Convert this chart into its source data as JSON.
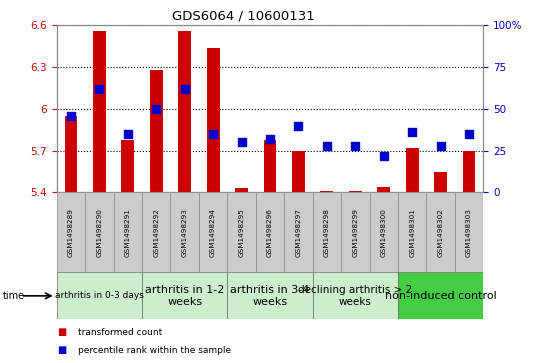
{
  "title": "GDS6064 / 10600131",
  "samples": [
    "GSM1498289",
    "GSM1498290",
    "GSM1498291",
    "GSM1498292",
    "GSM1498293",
    "GSM1498294",
    "GSM1498295",
    "GSM1498296",
    "GSM1498297",
    "GSM1498298",
    "GSM1498299",
    "GSM1498300",
    "GSM1498301",
    "GSM1498302",
    "GSM1498303"
  ],
  "bar_values": [
    5.95,
    6.56,
    5.78,
    6.28,
    6.56,
    6.44,
    5.43,
    5.78,
    5.7,
    5.41,
    5.41,
    5.44,
    5.72,
    5.55,
    5.7
  ],
  "dot_values": [
    46,
    62,
    35,
    50,
    62,
    35,
    30,
    32,
    40,
    28,
    28,
    22,
    36,
    28,
    35
  ],
  "bar_color": "#cc0000",
  "dot_color": "#0000cc",
  "ylim_left": [
    5.4,
    6.6
  ],
  "ylim_right": [
    0,
    100
  ],
  "yticks_left": [
    5.4,
    5.7,
    6.0,
    6.3,
    6.6
  ],
  "yticks_right": [
    0,
    25,
    50,
    75,
    100
  ],
  "ytick_labels_left": [
    "5.4",
    "5.7",
    "6",
    "6.3",
    "6.6"
  ],
  "ytick_labels_right": [
    "0",
    "25",
    "50",
    "75",
    "100%"
  ],
  "groups": [
    {
      "label": "arthritis in 0-3 days",
      "start": 0,
      "end": 3
    },
    {
      "label": "arthritis in 1-2\nweeks",
      "start": 3,
      "end": 6
    },
    {
      "label": "arthritis in 3-4\nweeks",
      "start": 6,
      "end": 9
    },
    {
      "label": "declining arthritis > 2\nweeks",
      "start": 9,
      "end": 12
    },
    {
      "label": "non-induced control",
      "start": 12,
      "end": 15
    }
  ],
  "group_colors": [
    "#cceecc",
    "#cceecc",
    "#cceecc",
    "#cceecc",
    "#44cc44"
  ],
  "group_fontsizes": [
    6.5,
    8.0,
    8.0,
    7.5,
    8.0
  ],
  "legend_items": [
    {
      "label": "transformed count",
      "color": "#cc0000"
    },
    {
      "label": "percentile rank within the sample",
      "color": "#0000cc"
    }
  ],
  "bg_color": "#ffffff",
  "tick_label_color_left": "#cc0000",
  "tick_label_color_right": "#0000cc",
  "bar_width": 0.45,
  "dot_size": 35,
  "sample_box_color": "#cccccc",
  "sample_box_edge": "#888888"
}
